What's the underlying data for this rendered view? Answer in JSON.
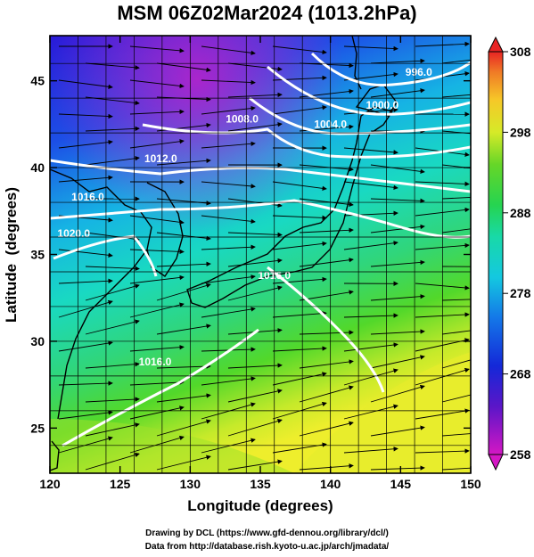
{
  "title": "MSM 06Z02Mar2024 (1013.2hPa)",
  "axes": {
    "xlabel": "Longitude (degrees)",
    "ylabel": "Latitude  (degrees)",
    "x_ticks": [
      120,
      125,
      130,
      135,
      140,
      145,
      150
    ],
    "y_ticks": [
      25,
      30,
      35,
      40,
      45
    ],
    "xlim": [
      120,
      150
    ],
    "ylim": [
      22.4,
      47.6
    ]
  },
  "colorbar": {
    "ticks": [
      "258",
      "268",
      "278",
      "288",
      "298",
      "308"
    ],
    "range": [
      258,
      308
    ]
  },
  "isobars": [
    {
      "label": "996.0",
      "lon": 146.3,
      "lat": 45.3
    },
    {
      "label": "1000.0",
      "lon": 143.7,
      "lat": 43.4
    },
    {
      "label": "1004.0",
      "lon": 140.0,
      "lat": 42.3
    },
    {
      "label": "1008.0",
      "lon": 133.7,
      "lat": 42.6
    },
    {
      "label": "1012.0",
      "lon": 127.9,
      "lat": 40.3
    },
    {
      "label": "1016.0",
      "lon": 122.7,
      "lat": 38.1
    },
    {
      "label": "1020.0",
      "lon": 121.7,
      "lat": 36.0
    },
    {
      "label": "1016.0",
      "lon": 136.0,
      "lat": 33.6
    },
    {
      "label": "1016.0",
      "lon": 127.5,
      "lat": 28.6
    }
  ],
  "credits": {
    "line1": "Drawing by DCL (https://www.gfd-dennou.org/library/dcl/)",
    "line2": "Data from http://database.rish.kyoto-u.ac.jp/arch/jmadata/"
  },
  "colors": {
    "cold": "#d21fd6",
    "cool": "#1e2fe0",
    "mid": "#19d7cc",
    "warm": "#3fd42a",
    "hot": "#f5ef28",
    "isobar": "#ffffff",
    "stream": "#000000"
  }
}
